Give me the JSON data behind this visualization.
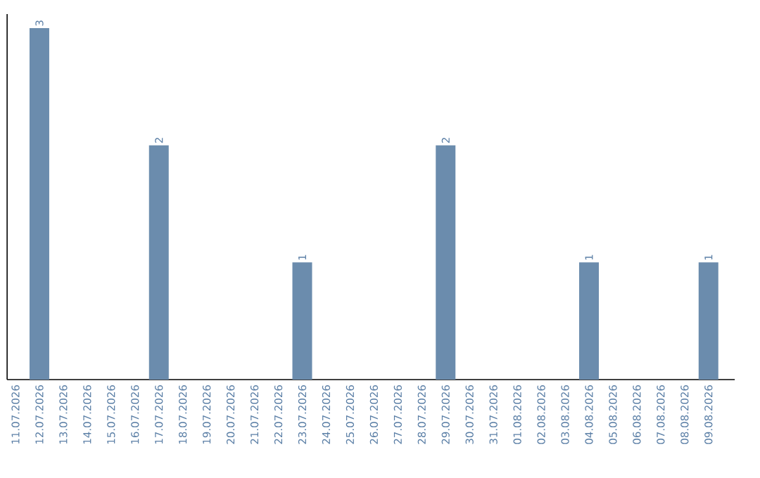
{
  "chart_data": {
    "type": "bar",
    "categories": [
      "11.07.2026",
      "12.07.2026",
      "13.07.2026",
      "14.07.2026",
      "15.07.2026",
      "16.07.2026",
      "17.07.2026",
      "18.07.2026",
      "19.07.2026",
      "20.07.2026",
      "21.07.2026",
      "22.07.2026",
      "23.07.2026",
      "24.07.2026",
      "25.07.2026",
      "26.07.2026",
      "27.07.2026",
      "28.07.2026",
      "29.07.2026",
      "30.07.2026",
      "31.07.2026",
      "01.08.2026",
      "02.08.2026",
      "03.08.2026",
      "04.08.2026",
      "05.08.2026",
      "06.08.2026",
      "07.08.2026",
      "08.08.2026",
      "09.08.2026"
    ],
    "values": [
      0,
      3,
      0,
      0,
      0,
      0,
      2,
      0,
      0,
      0,
      0,
      0,
      1,
      0,
      0,
      0,
      0,
      0,
      2,
      0,
      0,
      0,
      0,
      0,
      1,
      0,
      0,
      0,
      0,
      1
    ],
    "value_labels": [
      null,
      "3",
      null,
      null,
      null,
      null,
      "2",
      null,
      null,
      null,
      null,
      null,
      "1",
      null,
      null,
      null,
      null,
      null,
      "2",
      null,
      null,
      null,
      null,
      null,
      "1",
      null,
      null,
      null,
      null,
      "1"
    ],
    "color": "#6b8cad",
    "grid": false
  }
}
